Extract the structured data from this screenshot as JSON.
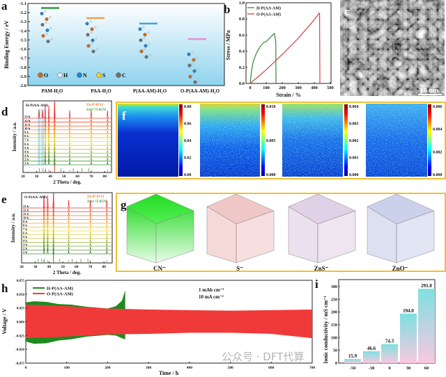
{
  "figure": {
    "panel_labels": {
      "a": "a",
      "b": "b",
      "c": "c",
      "d": "d",
      "e": "e",
      "f": "f",
      "g": "g",
      "h": "h",
      "i": "i"
    },
    "watermark": "公众号 · DFT代算"
  },
  "panel_c": {
    "type": "SEM image",
    "scale_bar": "10 um"
  },
  "panel_g": {
    "labels": [
      "CN⁻",
      "S⁻",
      "ZnS⁻",
      "ZnO⁻"
    ],
    "colors": [
      "#22dd22",
      "#d05050",
      "#a070b0",
      "#6070c0"
    ]
  },
  "chart_data": [
    {
      "panel": "a",
      "type": "scatter",
      "ylabel": "Binding Energy / eV",
      "ylim": [
        -2.0,
        -1.1
      ],
      "yticks": [
        "-1.1",
        "-1.2",
        "-1.3",
        "-1.4",
        "-1.5",
        "-1.6",
        "-1.7",
        "-1.8",
        "-1.9",
        "-2.0"
      ],
      "categories": [
        "PAM-H₂O",
        "PAA-H₂O",
        "P(AA-AM)-H₂O",
        "O-P(AA-AM)-H₂O"
      ],
      "values": [
        -1.15,
        -1.26,
        -1.32,
        -1.49
      ],
      "colors": [
        "#2f9a3a",
        "#e8a050",
        "#3aa6dd",
        "#e48ed6"
      ],
      "legend": [
        {
          "label": "O",
          "color": "#d2691e"
        },
        {
          "label": "H",
          "color": "#e6e6e6"
        },
        {
          "label": "N",
          "color": "#1e88d0"
        },
        {
          "label": "S",
          "color": "#f0d020"
        },
        {
          "label": "C",
          "color": "#707070"
        }
      ]
    },
    {
      "panel": "b",
      "type": "line",
      "xlabel": "Strain / %",
      "ylabel": "Stress / MPa",
      "xlim": [
        0,
        500
      ],
      "ylim": [
        0,
        1.0
      ],
      "xticks": [
        "0",
        "100",
        "200",
        "300",
        "400",
        "500"
      ],
      "yticks": [
        "0.0",
        "0.2",
        "0.4",
        "0.6",
        "0.8",
        "1.0"
      ],
      "series": [
        {
          "name": "H-P(AA-AM)",
          "color": "#2e8b2e",
          "points": [
            [
              0,
              0
            ],
            [
              8,
              0.15
            ],
            [
              20,
              0.28
            ],
            [
              40,
              0.38
            ],
            [
              60,
              0.45
            ],
            [
              85,
              0.51
            ],
            [
              100,
              0.52
            ],
            [
              120,
              0.56
            ],
            [
              140,
              0.6
            ],
            [
              150,
              0.62
            ],
            [
              155,
              0.58
            ],
            [
              158,
              0.55
            ],
            [
              160,
              0.5
            ],
            [
              161,
              0
            ]
          ]
        },
        {
          "name": "O-P(AA-AM)",
          "color": "#d04040",
          "points": [
            [
              0,
              0
            ],
            [
              100,
              0.17
            ],
            [
              200,
              0.36
            ],
            [
              300,
              0.56
            ],
            [
              400,
              0.79
            ],
            [
              430,
              0.87
            ],
            [
              433,
              0.87
            ],
            [
              435,
              0
            ]
          ]
        }
      ]
    },
    {
      "panel": "d",
      "type": "line",
      "title": "H-P(AA-AM)",
      "xlabel": "2 Theta / deg.",
      "ylabel": "Intensity / a.u.",
      "xlim": [
        20,
        85
      ],
      "xticks": [
        "20",
        "30",
        "40",
        "50",
        "60",
        "70",
        "80"
      ],
      "series_labels": [
        "1 h",
        "2 h",
        "3 h",
        "4 h",
        "5 h",
        "6 h",
        "7 h",
        "8 h",
        "9 h",
        "10 h",
        "11 h",
        "12 h",
        "13 h"
      ],
      "peaks": [
        31.8,
        34.4,
        36.3,
        39.0,
        43.2,
        54.3,
        70.1,
        82.1
      ],
      "highlight": [
        31.8,
        34.4
      ],
      "references": [
        {
          "name": "Zn 87-0713",
          "color": "#e07a20",
          "positions": [
            36.3,
            39.0,
            43.2,
            54.3,
            70.1,
            82.1
          ]
        },
        {
          "name": "ZnO 75-0576",
          "color": "#3a9a3a",
          "positions": [
            31.8,
            34.4,
            36.3,
            47.5,
            56.6,
            62.9,
            68.0
          ]
        }
      ]
    },
    {
      "panel": "e",
      "type": "line",
      "title": "O-P(AA-AM)",
      "xlabel": "2 Theta / deg.",
      "ylabel": "Intensity / a.u.",
      "xlim": [
        20,
        85
      ],
      "xticks": [
        "20",
        "30",
        "40",
        "50",
        "60",
        "70",
        "80"
      ],
      "series_labels": [
        "1 h",
        "2 h",
        "3 h",
        "4 h",
        "5 h",
        "6 h",
        "7 h",
        "8 h",
        "9 h",
        "10 h",
        "11 h",
        "12 h",
        "13 h"
      ],
      "peaks": [
        36.3,
        39.0,
        43.2,
        54.3,
        70.1,
        82.1
      ],
      "highlight": [],
      "references": [
        {
          "name": "Zn 87-0713",
          "color": "#e07a20",
          "positions": [
            36.3,
            39.0,
            43.2,
            54.3,
            70.1,
            82.1
          ]
        },
        {
          "name": "ZnO 75-0576",
          "color": "#3a9a3a",
          "positions": [
            31.8,
            34.4,
            36.3,
            47.5,
            56.6,
            62.9,
            68.0
          ]
        }
      ]
    },
    {
      "panel": "f",
      "type": "heatmap",
      "colormap": "jet",
      "maps": [
        {
          "colorbar_ticks": [
            "0.08",
            "0.06",
            "0.04",
            "0.02",
            "0.00"
          ]
        },
        {
          "colorbar_ticks": [
            "0.010",
            "0.005",
            "0.000"
          ]
        },
        {
          "colorbar_ticks": [
            "0.004",
            "0.003",
            "0.002",
            "0.001",
            "0.000"
          ]
        },
        {
          "colorbar_ticks": [
            "0.006",
            "0.004",
            "0.002",
            "0.000"
          ]
        }
      ]
    },
    {
      "panel": "h",
      "type": "area",
      "xlabel": "Time / h",
      "ylabel": "Voltage / V",
      "xlim": [
        0,
        700
      ],
      "ylim": [
        -0.075,
        0.075
      ],
      "xticks": [
        "0",
        "100",
        "200",
        "300",
        "400",
        "500",
        "600",
        "700"
      ],
      "yticks": [
        "0.075",
        "0.050",
        "0.025",
        "0.000",
        "-0.025",
        "-0.050",
        "-0.075"
      ],
      "annotations": [
        "1 mAh cm⁻²",
        "10 mA cm⁻²"
      ],
      "series": [
        {
          "name": "H-P(AA-AM)",
          "color": "#1f8a1f",
          "upper": [
            [
              0,
              0.035
            ],
            [
              20,
              0.037
            ],
            [
              50,
              0.036
            ],
            [
              80,
              0.032
            ],
            [
              110,
              0.031
            ],
            [
              150,
              0.027
            ],
            [
              200,
              0.024
            ],
            [
              220,
              0.028
            ],
            [
              235,
              0.038
            ],
            [
              243,
              0.057
            ]
          ],
          "lower": [
            [
              0,
              -0.036
            ],
            [
              20,
              -0.04
            ],
            [
              50,
              -0.039
            ],
            [
              80,
              -0.034
            ],
            [
              110,
              -0.032
            ],
            [
              150,
              -0.027
            ],
            [
              200,
              -0.024
            ],
            [
              220,
              -0.025
            ],
            [
              235,
              -0.03
            ],
            [
              243,
              -0.032
            ]
          ]
        },
        {
          "name": "O-P(AA-AM)",
          "color": "#f03a3a",
          "upper": [
            [
              0,
              0.031
            ],
            [
              100,
              0.028
            ],
            [
              200,
              0.024
            ],
            [
              300,
              0.022
            ],
            [
              400,
              0.021
            ],
            [
              500,
              0.02
            ],
            [
              600,
              0.021
            ],
            [
              700,
              0.022
            ]
          ],
          "lower": [
            [
              0,
              -0.03
            ],
            [
              100,
              -0.027
            ],
            [
              200,
              -0.023
            ],
            [
              300,
              -0.022
            ],
            [
              400,
              -0.02
            ],
            [
              500,
              -0.02
            ],
            [
              600,
              -0.022
            ],
            [
              700,
              -0.03
            ]
          ]
        }
      ]
    },
    {
      "panel": "i",
      "type": "bar",
      "ylabel": "Ionic conductivity / mS cm⁻¹",
      "ylim": [
        0,
        327
      ],
      "yticks": [
        "0",
        "50",
        "100",
        "150",
        "200",
        "250",
        "300"
      ],
      "categories": [
        "-50",
        "-30",
        "0",
        "30",
        "60"
      ],
      "values": [
        15.9,
        46.6,
        74.3,
        194.0,
        291.0
      ],
      "value_labels": [
        "15.9",
        "46.6",
        "74.3",
        "194.0",
        "291.0"
      ]
    }
  ]
}
